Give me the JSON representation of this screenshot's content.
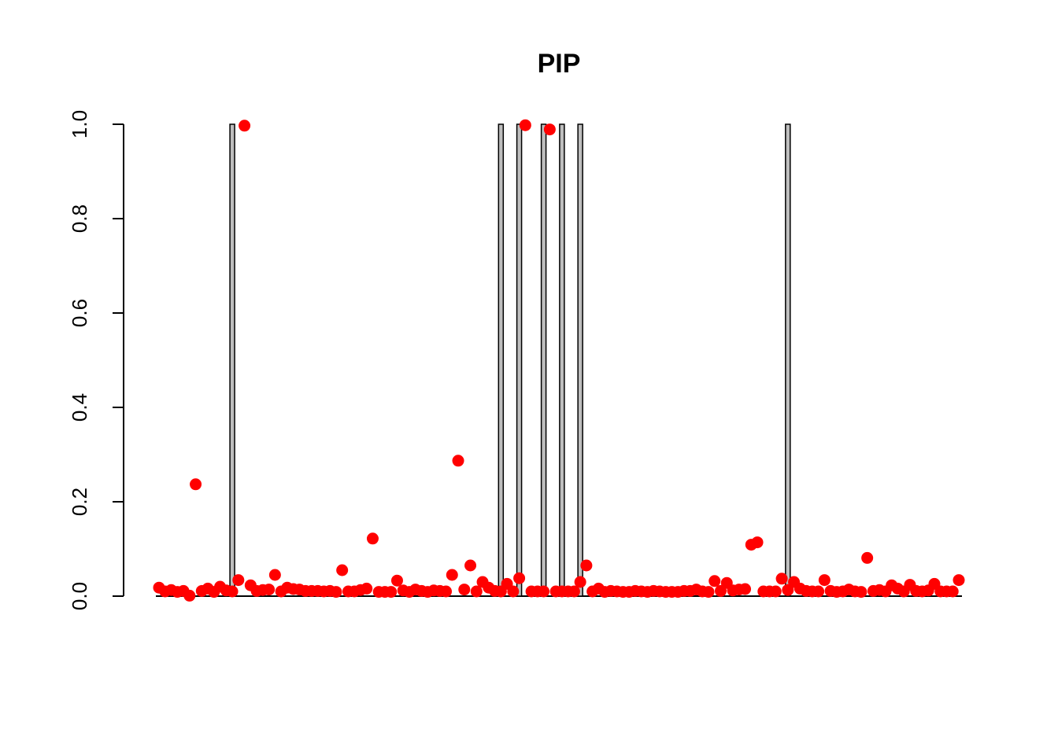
{
  "chart_data": {
    "type": "bar",
    "title": "PIP",
    "xlabel": "",
    "ylabel": "",
    "ylim": [
      0,
      1
    ],
    "yticks": [
      "0.0",
      "0.2",
      "0.4",
      "0.6",
      "0.8",
      "1.0"
    ],
    "grid": false,
    "legend": "none",
    "n_positions": 132,
    "series": [
      {
        "kind": "bar",
        "fill": "#bebebe",
        "stroke": "#000000",
        "bars": [
          {
            "index": 13,
            "value": 1.0
          },
          {
            "index": 57,
            "value": 1.0
          },
          {
            "index": 60,
            "value": 1.0
          },
          {
            "index": 64,
            "value": 1.0
          },
          {
            "index": 67,
            "value": 1.0
          },
          {
            "index": 70,
            "value": 1.0
          },
          {
            "index": 104,
            "value": 1.0
          }
        ]
      },
      {
        "kind": "points",
        "color": "#ff0000",
        "values": [
          0.018,
          0.01,
          0.013,
          0.009,
          0.011,
          0.001,
          0.237,
          0.011,
          0.016,
          0.009,
          0.02,
          0.012,
          0.01,
          0.034,
          0.997,
          0.023,
          0.011,
          0.013,
          0.014,
          0.045,
          0.01,
          0.018,
          0.015,
          0.014,
          0.011,
          0.011,
          0.011,
          0.01,
          0.011,
          0.009,
          0.055,
          0.01,
          0.01,
          0.013,
          0.016,
          0.122,
          0.009,
          0.009,
          0.009,
          0.033,
          0.012,
          0.009,
          0.014,
          0.011,
          0.009,
          0.012,
          0.011,
          0.01,
          0.045,
          0.287,
          0.014,
          0.065,
          0.01,
          0.03,
          0.018,
          0.011,
          0.01,
          0.026,
          0.01,
          0.038,
          0.998,
          0.01,
          0.01,
          0.01,
          0.989,
          0.01,
          0.01,
          0.01,
          0.01,
          0.03,
          0.065,
          0.01,
          0.016,
          0.009,
          0.011,
          0.01,
          0.009,
          0.009,
          0.011,
          0.01,
          0.009,
          0.011,
          0.01,
          0.009,
          0.009,
          0.009,
          0.011,
          0.011,
          0.014,
          0.01,
          0.009,
          0.032,
          0.011,
          0.028,
          0.012,
          0.014,
          0.015,
          0.109,
          0.114,
          0.01,
          0.01,
          0.01,
          0.037,
          0.013,
          0.03,
          0.016,
          0.011,
          0.01,
          0.01,
          0.034,
          0.011,
          0.009,
          0.01,
          0.014,
          0.01,
          0.009,
          0.081,
          0.011,
          0.013,
          0.01,
          0.023,
          0.016,
          0.01,
          0.024,
          0.011,
          0.01,
          0.012,
          0.026,
          0.01,
          0.01,
          0.01,
          0.034
        ]
      }
    ]
  }
}
